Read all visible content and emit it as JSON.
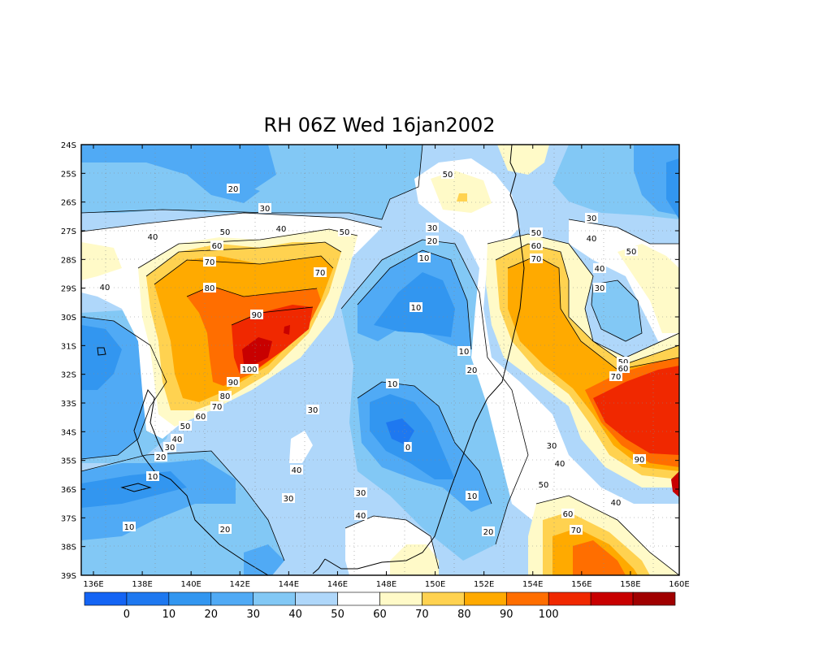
{
  "title": "RH 06Z Wed 16jan2002",
  "y_axis_labels": [
    "24S",
    "25S",
    "26S",
    "27S",
    "28S",
    "29S",
    "30S",
    "31S",
    "32S",
    "33S",
    "34S",
    "35S",
    "36S",
    "37S",
    "38S",
    "39S"
  ],
  "x_axis_labels": [
    "136E",
    "138E",
    "140E",
    "142E",
    "144E",
    "146E",
    "148E",
    "150E",
    "152E",
    "154E",
    "156E",
    "158E",
    "160E"
  ],
  "colorbar": {
    "labels": [
      "0",
      "10",
      "20",
      "30",
      "40",
      "50",
      "60",
      "70",
      "80",
      "90",
      "100"
    ],
    "colors": [
      "#1464f4",
      "#1e78f0",
      "#3296f0",
      "#50aaf5",
      "#82c8f5",
      "#afd7fa",
      "#ffffff",
      "#fffac8",
      "#ffd250",
      "#ffaa00",
      "#ff6e00",
      "#f02800",
      "#c80000",
      "#a00000"
    ]
  },
  "contour_labels": [
    {
      "text": "20"
    },
    {
      "text": "30"
    },
    {
      "text": "40"
    },
    {
      "text": "50"
    },
    {
      "text": "60"
    },
    {
      "text": "70"
    },
    {
      "text": "80"
    },
    {
      "text": "90"
    },
    {
      "text": "100"
    },
    {
      "text": "40"
    },
    {
      "text": "50"
    },
    {
      "text": "70"
    },
    {
      "text": "50"
    },
    {
      "text": "30"
    },
    {
      "text": "20"
    },
    {
      "text": "10"
    },
    {
      "text": "10"
    },
    {
      "text": "10"
    },
    {
      "text": "20"
    },
    {
      "text": "30"
    },
    {
      "text": "40"
    },
    {
      "text": "50"
    },
    {
      "text": "60"
    },
    {
      "text": "70"
    },
    {
      "text": "40"
    },
    {
      "text": "30"
    },
    {
      "text": "50"
    },
    {
      "text": "50"
    },
    {
      "text": "60"
    },
    {
      "text": "70"
    },
    {
      "text": "90"
    },
    {
      "text": "40"
    },
    {
      "text": "30"
    },
    {
      "text": "40"
    },
    {
      "text": "10"
    },
    {
      "text": "0"
    },
    {
      "text": "30"
    },
    {
      "text": "40"
    },
    {
      "text": "30"
    },
    {
      "text": "30"
    },
    {
      "text": "40"
    },
    {
      "text": "10"
    },
    {
      "text": "20"
    },
    {
      "text": "90"
    },
    {
      "text": "80"
    },
    {
      "text": "70"
    },
    {
      "text": "60"
    },
    {
      "text": "50"
    },
    {
      "text": "40"
    },
    {
      "text": "30"
    },
    {
      "text": "20"
    },
    {
      "text": "10"
    },
    {
      "text": "10"
    },
    {
      "text": "20"
    },
    {
      "text": "50"
    },
    {
      "text": "60"
    },
    {
      "text": "70"
    },
    {
      "text": "40"
    }
  ]
}
